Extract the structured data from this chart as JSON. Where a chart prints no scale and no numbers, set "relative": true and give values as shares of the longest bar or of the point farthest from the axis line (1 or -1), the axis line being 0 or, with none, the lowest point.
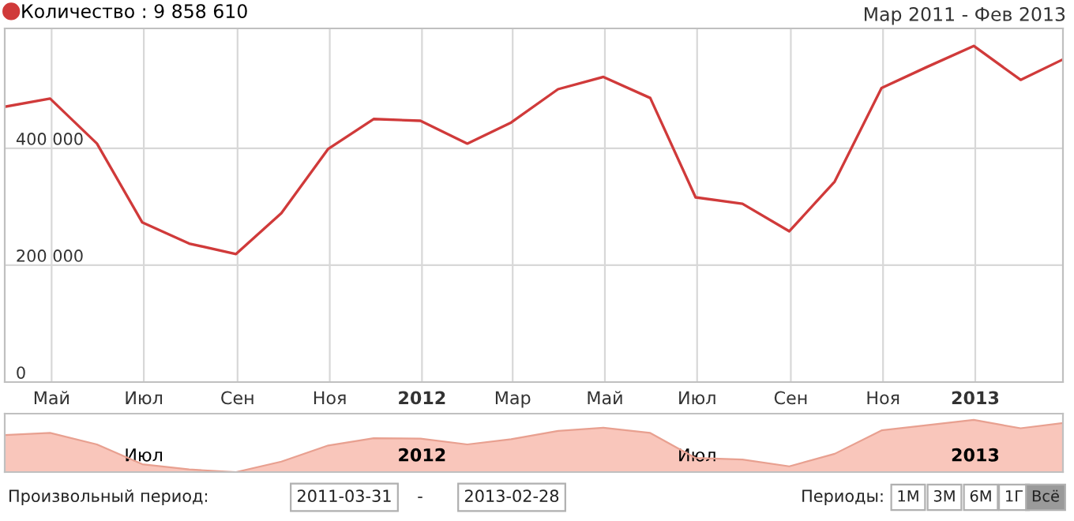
{
  "chart_data": [
    {
      "type": "line",
      "subtitle": "Мар 2011 - Фев 2013",
      "x": [
        "2011-03-31",
        "2011-04-30",
        "2011-05-31",
        "2011-06-30",
        "2011-07-31",
        "2011-08-31",
        "2011-09-30",
        "2011-10-31",
        "2011-11-30",
        "2011-12-31",
        "2012-01-31",
        "2012-02-29",
        "2012-03-31",
        "2012-04-30",
        "2012-05-31",
        "2012-06-30",
        "2012-07-31",
        "2012-08-31",
        "2012-09-30",
        "2012-10-31",
        "2012-11-30",
        "2012-12-31",
        "2013-01-31",
        "2013-02-28"
      ],
      "series": [
        {
          "name": "Количество : 9 858 610",
          "color": "#d03a3a",
          "values": [
            471000,
            485000,
            408000,
            273000,
            237000,
            219000,
            289000,
            399000,
            450000,
            447000,
            408000,
            444000,
            501000,
            522000,
            486000,
            316000,
            305000,
            258000,
            343000,
            503000,
            539000,
            575000,
            517000,
            552000
          ]
        }
      ],
      "xlim": [
        "2011-03-31",
        "2013-02-28"
      ],
      "ylim": [
        0,
        605000
      ],
      "xticks": [
        {
          "value": "2011-05-01",
          "label": "Май"
        },
        {
          "value": "2011-07-01",
          "label": "Июл"
        },
        {
          "value": "2011-09-01",
          "label": "Сен"
        },
        {
          "value": "2011-11-01",
          "label": "Ноя"
        },
        {
          "value": "2012-01-01",
          "label": "2012"
        },
        {
          "value": "2012-03-01",
          "label": "Мар"
        },
        {
          "value": "2012-05-01",
          "label": "Май"
        },
        {
          "value": "2012-07-01",
          "label": "Июл"
        },
        {
          "value": "2012-09-01",
          "label": "Сен"
        },
        {
          "value": "2012-11-01",
          "label": "Ноя"
        },
        {
          "value": "2013-01-01",
          "label": "2013"
        }
      ],
      "yticks": [
        0,
        {
          "value": 200000,
          "label": "200 000"
        },
        {
          "value": 400000,
          "label": "400 000"
        }
      ],
      "grid": true,
      "legend": "top left",
      "marker": "none",
      "line_style": "solid"
    },
    {
      "type": "area",
      "relative": true,
      "x": [
        "2011-03-31",
        "2011-04-30",
        "2011-05-31",
        "2011-06-30",
        "2011-07-31",
        "2011-08-31",
        "2011-09-30",
        "2011-10-31",
        "2011-11-30",
        "2011-12-31",
        "2012-01-31",
        "2012-02-29",
        "2012-03-31",
        "2012-04-30",
        "2012-05-31",
        "2012-06-30",
        "2012-07-31",
        "2012-08-31",
        "2012-09-30",
        "2012-10-31",
        "2012-11-30",
        "2012-12-31",
        "2013-01-31",
        "2013-02-28"
      ],
      "series": [
        {
          "color": "#f9c6bb",
          "values": [
            0.71,
            0.75,
            0.53,
            0.15,
            0.05,
            0,
            0.2,
            0.51,
            0.65,
            0.64,
            0.53,
            0.63,
            0.79,
            0.85,
            0.75,
            0.27,
            0.24,
            0.11,
            0.35,
            0.8,
            0.9,
            1,
            0.84,
            0.94
          ]
        }
      ],
      "xlim": [
        "2011-03-31",
        "2013-02-28"
      ],
      "xticks": [
        {
          "value": "2011-07-01",
          "label": "Июл"
        },
        {
          "value": "2012-01-01",
          "label": "2012"
        },
        {
          "value": "2012-07-01",
          "label": "Июл"
        },
        {
          "value": "2013-01-01",
          "label": "2013"
        }
      ],
      "annotations": [
        "Произвольный период:",
        "2011-03-31",
        "-",
        "2013-02-28",
        "Периоды:",
        "1М",
        "3М",
        "6М",
        "1Г",
        "Всё"
      ]
    }
  ]
}
